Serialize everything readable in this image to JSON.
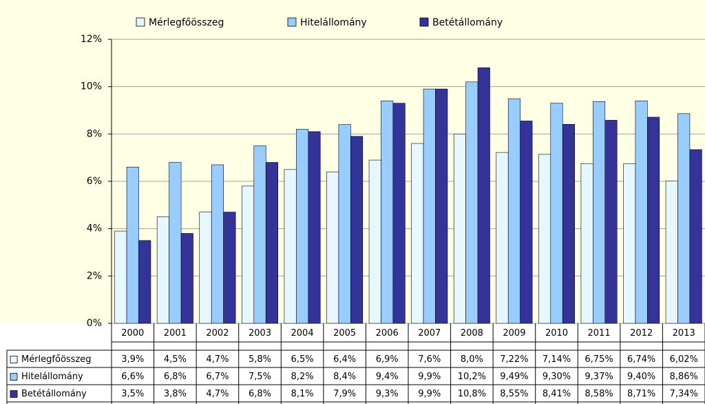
{
  "chart_data": {
    "type": "bar",
    "categories": [
      "2000",
      "2001",
      "2002",
      "2003",
      "2004",
      "2005",
      "2006",
      "2007",
      "2008",
      "2009",
      "2010",
      "2011",
      "2012",
      "2013"
    ],
    "series": [
      {
        "name": "Mérlegfőösszeg",
        "color": "#e6f7ff",
        "values": [
          3.9,
          4.5,
          4.7,
          5.8,
          6.5,
          6.4,
          6.9,
          7.6,
          8.0,
          7.22,
          7.14,
          6.75,
          6.74,
          6.02
        ],
        "value_labels": [
          "3,9%",
          "4,5%",
          "4,7%",
          "5,8%",
          "6,5%",
          "6,4%",
          "6,9%",
          "7,6%",
          "8,0%",
          "7,22%",
          "7,14%",
          "6,75%",
          "6,74%",
          "6,02%"
        ]
      },
      {
        "name": "Hitelállomány",
        "color": "#99ccff",
        "values": [
          6.6,
          6.8,
          6.7,
          7.5,
          8.2,
          8.4,
          9.4,
          9.9,
          10.2,
          9.49,
          9.3,
          9.37,
          9.4,
          8.86
        ],
        "value_labels": [
          "6,6%",
          "6,8%",
          "6,7%",
          "7,5%",
          "8,2%",
          "8,4%",
          "9,4%",
          "9,9%",
          "10,2%",
          "9,49%",
          "9,30%",
          "9,37%",
          "9,40%",
          "8,86%"
        ]
      },
      {
        "name": "Betétállomány",
        "color": "#333399",
        "values": [
          3.5,
          3.8,
          4.7,
          6.8,
          8.1,
          7.9,
          9.3,
          9.9,
          10.8,
          8.55,
          8.41,
          8.58,
          8.71,
          7.34
        ],
        "value_labels": [
          "3,5%",
          "3,8%",
          "4,7%",
          "6,8%",
          "8,1%",
          "7,9%",
          "9,3%",
          "9,9%",
          "10,8%",
          "8,55%",
          "8,41%",
          "8,58%",
          "8,71%",
          "7,34%"
        ]
      }
    ],
    "ylim": [
      0,
      12
    ],
    "yticks": [
      {
        "value": 0,
        "label": "0%"
      },
      {
        "value": 2,
        "label": "2%"
      },
      {
        "value": 4,
        "label": "4%"
      },
      {
        "value": 6,
        "label": "6%"
      },
      {
        "value": 8,
        "label": "8%"
      },
      {
        "value": 10,
        "label": "10%"
      },
      {
        "value": 12,
        "label": "12%"
      }
    ],
    "grid": true,
    "legend": "top"
  }
}
